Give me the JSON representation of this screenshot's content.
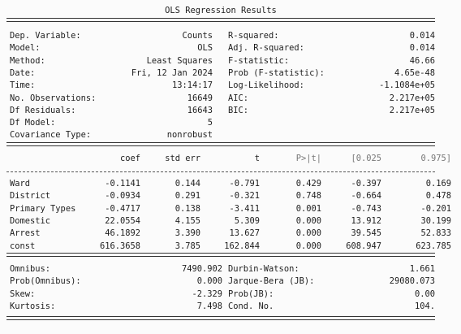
{
  "title": "OLS Regression Results",
  "summary_left": [
    {
      "label": "Dep. Variable:",
      "value": "Counts"
    },
    {
      "label": "Model:",
      "value": "OLS"
    },
    {
      "label": "Method:",
      "value": "Least Squares"
    },
    {
      "label": "Date:",
      "value": "Fri, 12 Jan 2024"
    },
    {
      "label": "Time:",
      "value": "13:14:17"
    },
    {
      "label": "No. Observations:",
      "value": "16649"
    },
    {
      "label": "Df Residuals:",
      "value": "16643"
    },
    {
      "label": "Df Model:",
      "value": "5"
    },
    {
      "label": "Covariance Type:",
      "value": "nonrobust"
    }
  ],
  "summary_right": [
    {
      "label": "R-squared:",
      "value": "0.014"
    },
    {
      "label": "Adj. R-squared:",
      "value": "0.014"
    },
    {
      "label": "F-statistic:",
      "value": "46.66"
    },
    {
      "label": "Prob (F-statistic):",
      "value": "4.65e-48"
    },
    {
      "label": "Log-Likelihood:",
      "value": "-1.1084e+05"
    },
    {
      "label": "AIC:",
      "value": "2.217e+05"
    },
    {
      "label": "BIC:",
      "value": "2.217e+05"
    }
  ],
  "coef_headers": [
    "coef",
    "std err",
    "t",
    "P>|t|",
    "[0.025",
    "0.975]"
  ],
  "coef_rows": [
    {
      "name": "Ward",
      "cells": [
        "-0.1141",
        "0.144",
        "-0.791",
        "0.429",
        "-0.397",
        "0.169"
      ]
    },
    {
      "name": "District",
      "cells": [
        "-0.0934",
        "0.291",
        "-0.321",
        "0.748",
        "-0.664",
        "0.478"
      ]
    },
    {
      "name": "Primary Types",
      "cells": [
        "-0.4717",
        "0.138",
        "-3.411",
        "0.001",
        "-0.743",
        "-0.201"
      ]
    },
    {
      "name": "Domestic",
      "cells": [
        "22.0554",
        "4.155",
        "5.309",
        "0.000",
        "13.912",
        "30.199"
      ]
    },
    {
      "name": "Arrest",
      "cells": [
        "46.1892",
        "3.390",
        "13.627",
        "0.000",
        "39.545",
        "52.833"
      ]
    },
    {
      "name": "const",
      "cells": [
        "616.3658",
        "3.785",
        "162.844",
        "0.000",
        "608.947",
        "623.785"
      ]
    }
  ],
  "diag_left": [
    {
      "label": "Omnibus:",
      "value": "7490.902"
    },
    {
      "label": "Prob(Omnibus):",
      "value": "0.000"
    },
    {
      "label": "Skew:",
      "value": "-2.329"
    },
    {
      "label": "Kurtosis:",
      "value": "7.498"
    }
  ],
  "diag_right": [
    {
      "label": "Durbin-Watson:",
      "value": "1.661"
    },
    {
      "label": "Jarque-Bera (JB):",
      "value": "29080.073"
    },
    {
      "label": "Prob(JB):",
      "value": "0.00"
    },
    {
      "label": "Cond. No.",
      "value": "104."
    }
  ]
}
